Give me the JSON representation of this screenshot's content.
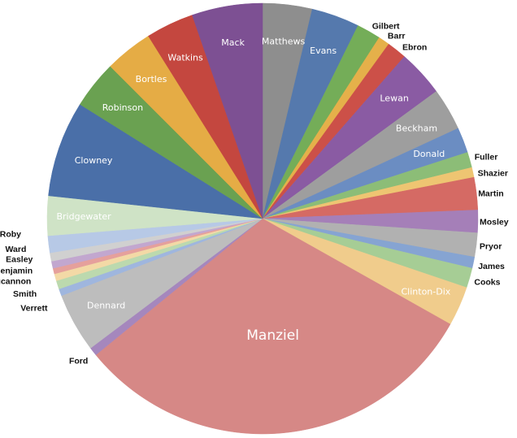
{
  "chart_data": {
    "type": "pie",
    "title": "",
    "start": "12 o'clock, clockwise",
    "slices": [
      {
        "name": "Matthews",
        "value": 3.5,
        "color": "#8e8e8e",
        "label": "inside"
      },
      {
        "name": "Evans",
        "value": 3.4,
        "color": "#5579ad",
        "label": "inside"
      },
      {
        "name": "Gilbert",
        "value": 1.7,
        "color": "#74ad58",
        "label": "outside"
      },
      {
        "name": "Barr",
        "value": 0.8,
        "color": "#e5b04a",
        "label": "outside"
      },
      {
        "name": "Ebron",
        "value": 1.4,
        "color": "#cc5048",
        "label": "outside"
      },
      {
        "name": "Lewan",
        "value": 3.3,
        "color": "#8a5ba3",
        "label": "inside"
      },
      {
        "name": "Beckham",
        "value": 3.0,
        "color": "#9e9e9e",
        "label": "inside"
      },
      {
        "name": "Donald",
        "value": 1.8,
        "color": "#6b8dc2",
        "label": "inside"
      },
      {
        "name": "Fuller",
        "value": 1.1,
        "color": "#8cbd77",
        "label": "outside"
      },
      {
        "name": "Shazier",
        "value": 0.7,
        "color": "#eec572",
        "label": "outside"
      },
      {
        "name": "Martin",
        "value": 2.3,
        "color": "#d56a64",
        "label": "outside"
      },
      {
        "name": "Mosley",
        "value": 1.6,
        "color": "#a57fb8",
        "label": "outside"
      },
      {
        "name": "Pryor",
        "value": 1.7,
        "color": "#b1b1b1",
        "label": "outside"
      },
      {
        "name": "James",
        "value": 0.8,
        "color": "#86a4d2",
        "label": "outside"
      },
      {
        "name": "Cooks",
        "value": 1.4,
        "color": "#a6cd95",
        "label": "outside"
      },
      {
        "name": "Clinton-Dix",
        "value": 2.8,
        "color": "#f0cc8c",
        "label": "inside"
      },
      {
        "name": "Manziel",
        "value": 29.2,
        "color": "#d68886",
        "label": "inside-big"
      },
      {
        "name": "Ford",
        "value": 0.6,
        "color": "#a587bd",
        "label": "outside"
      },
      {
        "name": "Dennard",
        "value": 4.2,
        "color": "#bdbdbd",
        "label": "inside"
      },
      {
        "name": "Verrett",
        "value": 0.5,
        "color": "#9fb6de",
        "label": "outside"
      },
      {
        "name": "Smith",
        "value": 0.6,
        "color": "#bcd9ae",
        "label": "outside"
      },
      {
        "name": "Bucannon",
        "value": 0.5,
        "color": "#f3d9a6",
        "label": "outside"
      },
      {
        "name": "Benjamin",
        "value": 0.4,
        "color": "#e5a09c",
        "label": "outside"
      },
      {
        "name": "Easley",
        "value": 0.5,
        "color": "#c2a7cf",
        "label": "outside"
      },
      {
        "name": "Ward",
        "value": 0.6,
        "color": "#d0d0d0",
        "label": "outside"
      },
      {
        "name": "Roby",
        "value": 1.2,
        "color": "#b7c9e6",
        "label": "outside"
      },
      {
        "name": "Bridgewater",
        "value": 2.8,
        "color": "#cfe3c6",
        "label": "inside"
      },
      {
        "name": "Clowney",
        "value": 6.8,
        "color": "#4a6fa8",
        "label": "inside"
      },
      {
        "name": "Robinson",
        "value": 3.4,
        "color": "#6aa151",
        "label": "inside"
      },
      {
        "name": "Bortles",
        "value": 3.4,
        "color": "#e5ac45",
        "label": "inside"
      },
      {
        "name": "Watkins",
        "value": 3.4,
        "color": "#c4473f",
        "label": "inside"
      },
      {
        "name": "Mack",
        "value": 5.0,
        "color": "#7d5093",
        "label": "inside"
      }
    ]
  }
}
